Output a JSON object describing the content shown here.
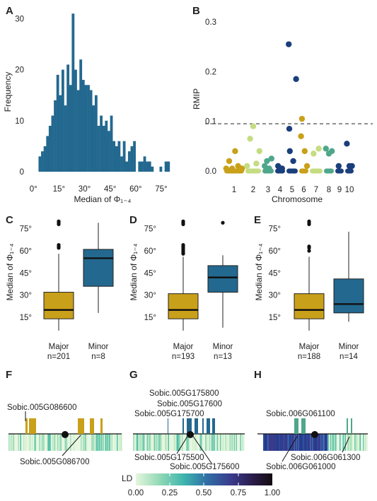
{
  "colors": {
    "primary": "#23688f",
    "gold": "#c9a019",
    "lightgreen": "#c5dc82",
    "midgreen": "#4ea78b",
    "darkblue": "#1b3f7c",
    "ld_low": "#e4f6dc",
    "ld_high": "#130c10"
  },
  "chart_data": [
    {
      "panel": "A",
      "type": "bar",
      "xlabel": "Median of Φ₁₋₄",
      "ylabel": "Frequency",
      "xticks": [
        "0°",
        "15°",
        "30°",
        "45°",
        "60°",
        "75°"
      ],
      "yticks": [
        "0",
        "10",
        "20",
        "30"
      ],
      "xlim": [
        -3,
        85
      ],
      "ylim": [
        0,
        32
      ],
      "bin_width": 1.5,
      "bins": [
        {
          "x": 3.0,
          "y": 3
        },
        {
          "x": 4.5,
          "y": 4
        },
        {
          "x": 6.0,
          "y": 5
        },
        {
          "x": 7.5,
          "y": 7
        },
        {
          "x": 9.0,
          "y": 9
        },
        {
          "x": 10.5,
          "y": 11
        },
        {
          "x": 12.0,
          "y": 14
        },
        {
          "x": 13.5,
          "y": 19
        },
        {
          "x": 15.0,
          "y": 15
        },
        {
          "x": 16.5,
          "y": 20
        },
        {
          "x": 18.0,
          "y": 13
        },
        {
          "x": 19.5,
          "y": 21
        },
        {
          "x": 21.0,
          "y": 17
        },
        {
          "x": 22.5,
          "y": 31
        },
        {
          "x": 24.0,
          "y": 20
        },
        {
          "x": 25.5,
          "y": 16
        },
        {
          "x": 27.0,
          "y": 22
        },
        {
          "x": 28.5,
          "y": 18
        },
        {
          "x": 30.0,
          "y": 17
        },
        {
          "x": 31.5,
          "y": 17
        },
        {
          "x": 33.0,
          "y": 16
        },
        {
          "x": 34.5,
          "y": 13
        },
        {
          "x": 36.0,
          "y": 15
        },
        {
          "x": 37.5,
          "y": 9
        },
        {
          "x": 39.0,
          "y": 11
        },
        {
          "x": 40.5,
          "y": 9
        },
        {
          "x": 42.0,
          "y": 10
        },
        {
          "x": 43.5,
          "y": 8
        },
        {
          "x": 45.0,
          "y": 11
        },
        {
          "x": 46.5,
          "y": 6
        },
        {
          "x": 48.0,
          "y": 5
        },
        {
          "x": 49.5,
          "y": 6
        },
        {
          "x": 51.0,
          "y": 3
        },
        {
          "x": 52.5,
          "y": 6
        },
        {
          "x": 54.0,
          "y": 2
        },
        {
          "x": 55.5,
          "y": 4
        },
        {
          "x": 57.0,
          "y": 5
        },
        {
          "x": 58.5,
          "y": 6
        },
        {
          "x": 61.5,
          "y": 2
        },
        {
          "x": 63.0,
          "y": 2
        },
        {
          "x": 64.5,
          "y": 3
        },
        {
          "x": 66.0,
          "y": 2
        },
        {
          "x": 67.5,
          "y": 2
        },
        {
          "x": 69.0,
          "y": 1
        },
        {
          "x": 74.0,
          "y": 1
        },
        {
          "x": 77.0,
          "y": 2
        },
        {
          "x": 78.5,
          "y": 2
        }
      ]
    },
    {
      "panel": "B",
      "type": "scatter",
      "xlabel": "Chromosome",
      "ylabel": "RMIP",
      "xticks": [
        "1",
        "2",
        "3",
        "4",
        "5",
        "6",
        "7",
        "8",
        "9",
        "10"
      ],
      "yticks": [
        "0.0",
        "0.1",
        "0.2",
        "0.3"
      ],
      "ylim": [
        0,
        0.32
      ],
      "threshold": 0.095,
      "chromosome_colors": [
        "gold",
        "lightgreen",
        "midgreen",
        "darkblue",
        "darkblue",
        "gold",
        "lightgreen",
        "midgreen",
        "darkblue",
        "darkblue"
      ],
      "points": [
        {
          "chr": 1,
          "pos": 0.1,
          "y": 0.005
        },
        {
          "chr": 1,
          "pos": 0.25,
          "y": 0.02
        },
        {
          "chr": 1,
          "pos": 0.4,
          "y": 0.005
        },
        {
          "chr": 1,
          "pos": 0.55,
          "y": 0.04
        },
        {
          "chr": 1,
          "pos": 0.7,
          "y": 0.01
        },
        {
          "chr": 1,
          "pos": 0.9,
          "y": 0.005
        },
        {
          "chr": 2,
          "pos": 0.1,
          "y": 0.01
        },
        {
          "chr": 2,
          "pos": 0.3,
          "y": 0.065
        },
        {
          "chr": 2,
          "pos": 0.5,
          "y": 0.09
        },
        {
          "chr": 2,
          "pos": 0.7,
          "y": 0.015
        },
        {
          "chr": 2,
          "pos": 0.9,
          "y": 0.04
        },
        {
          "chr": 3,
          "pos": 0.2,
          "y": 0.01
        },
        {
          "chr": 3,
          "pos": 0.4,
          "y": 0.02
        },
        {
          "chr": 3,
          "pos": 0.6,
          "y": 0.005
        },
        {
          "chr": 3,
          "pos": 0.8,
          "y": 0.025
        },
        {
          "chr": 4,
          "pos": 0.3,
          "y": 0.01
        },
        {
          "chr": 4,
          "pos": 0.7,
          "y": 0.005
        },
        {
          "chr": 5,
          "pos": 0.2,
          "y": 0.255
        },
        {
          "chr": 5,
          "pos": 0.25,
          "y": 0.085
        },
        {
          "chr": 5,
          "pos": 0.3,
          "y": 0.04
        },
        {
          "chr": 5,
          "pos": 0.6,
          "y": 0.02
        },
        {
          "chr": 5,
          "pos": 0.85,
          "y": 0.185
        },
        {
          "chr": 6,
          "pos": 0.2,
          "y": 0.07
        },
        {
          "chr": 6,
          "pos": 0.3,
          "y": 0.105
        },
        {
          "chr": 6,
          "pos": 0.6,
          "y": 0.04
        },
        {
          "chr": 6,
          "pos": 0.85,
          "y": 0.01
        },
        {
          "chr": 7,
          "pos": 0.3,
          "y": 0.035
        },
        {
          "chr": 7,
          "pos": 0.7,
          "y": 0.045
        },
        {
          "chr": 8,
          "pos": 0.2,
          "y": 0.045
        },
        {
          "chr": 8,
          "pos": 0.5,
          "y": 0.035
        },
        {
          "chr": 8,
          "pos": 0.8,
          "y": 0.04
        },
        {
          "chr": 9,
          "pos": 0.4,
          "y": 0.01
        },
        {
          "chr": 10,
          "pos": 0.2,
          "y": 0.055
        },
        {
          "chr": 10,
          "pos": 0.5,
          "y": 0.01
        },
        {
          "chr": 10,
          "pos": 0.8,
          "y": 0.01
        }
      ]
    },
    {
      "panel": "C",
      "type": "box",
      "ylabel": "Median of Φ₁₋₄",
      "yticks": [
        "15°",
        "30°",
        "45°",
        "60°",
        "75°"
      ],
      "ylim": [
        5,
        82
      ],
      "boxes": [
        {
          "label": "Major",
          "n": "n=201",
          "color": "gold",
          "min": 6,
          "q1": 14,
          "median": 20,
          "q3": 32,
          "max": 58,
          "outliers": [
            62,
            63,
            64,
            78,
            79,
            80
          ]
        },
        {
          "label": "Minor",
          "n": "n=8",
          "color": "primary",
          "min": 18,
          "q1": 36,
          "median": 55,
          "q3": 61,
          "max": 79,
          "outliers": []
        }
      ]
    },
    {
      "panel": "D",
      "type": "box",
      "ylabel": "Median of Φ₁₋₄",
      "yticks": [
        "15°",
        "30°",
        "45°",
        "60°",
        "75°"
      ],
      "ylim": [
        5,
        82
      ],
      "boxes": [
        {
          "label": "Major",
          "n": "n=193",
          "color": "gold",
          "min": 6,
          "q1": 14,
          "median": 20,
          "q3": 31,
          "max": 56,
          "outliers": [
            58,
            59,
            60,
            61,
            62,
            63,
            64,
            78,
            79,
            80
          ]
        },
        {
          "label": "Minor",
          "n": "n=13",
          "color": "primary",
          "min": 8,
          "q1": 32,
          "median": 42,
          "q3": 50,
          "max": 57,
          "outliers": [
            79
          ]
        }
      ]
    },
    {
      "panel": "E",
      "type": "box",
      "ylabel": "Median of Φ₁₋₄",
      "yticks": [
        "15°",
        "30°",
        "45°",
        "60°",
        "75°"
      ],
      "ylim": [
        5,
        82
      ],
      "boxes": [
        {
          "label": "Major",
          "n": "n=188",
          "color": "gold",
          "min": 6,
          "q1": 14,
          "median": 20,
          "q3": 31,
          "max": 56,
          "outliers": [
            60,
            62,
            63,
            78,
            79,
            80
          ]
        },
        {
          "label": "Minor",
          "n": "n=14",
          "color": "primary",
          "min": 12,
          "q1": 18,
          "median": 24,
          "q3": 41,
          "max": 73,
          "outliers": []
        }
      ]
    }
  ],
  "panels": {
    "A": "A",
    "B": "B",
    "C": "C",
    "D": "D",
    "E": "E",
    "F": "F",
    "G": "G",
    "H": "H"
  },
  "gene_panels": {
    "F": {
      "genes": [
        "Sobic.005G086600",
        "Sobic.005G086700"
      ]
    },
    "G": {
      "genes": [
        "Sobic.005G175800",
        "Sobic.005G17600",
        "Sobic.005G175700",
        "Sobic.005G175500",
        "Sobic.005G175600"
      ]
    },
    "H": {
      "genes": [
        "Sobic.006G061100",
        "Sobic.006G061300",
        "Sobic.006G061000"
      ]
    }
  },
  "ld_legend": {
    "title": "LD",
    "ticks": [
      "0.00",
      "0.25",
      "0.50",
      "0.75",
      "1.00"
    ]
  }
}
